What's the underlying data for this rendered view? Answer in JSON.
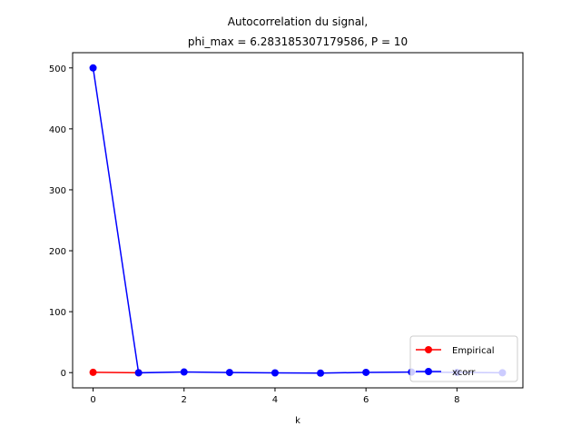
{
  "chart_data": {
    "type": "line",
    "title_lines": [
      "Autocorrelation du signal,",
      "phi_max = 6.283185307179586, P = 10"
    ],
    "xlabel": "k",
    "ylabel": "",
    "xlim": [
      -0.45,
      9.45
    ],
    "ylim": [
      -25,
      525
    ],
    "xticks": [
      0,
      2,
      4,
      6,
      8
    ],
    "yticks": [
      0,
      100,
      200,
      300,
      400,
      500
    ],
    "grid": false,
    "legend_position": "lower-right",
    "series": [
      {
        "name": "Empirical",
        "color": "#ff0000",
        "x": [
          0,
          1
        ],
        "y": [
          0.5,
          -0.3
        ]
      },
      {
        "name": "xcorr",
        "color": "#0000ff",
        "x": [
          0,
          1,
          2,
          3,
          4,
          5,
          6,
          7,
          8,
          9
        ],
        "y": [
          500,
          -0.3,
          1.0,
          0.2,
          -0.4,
          -0.8,
          0.4,
          0.9,
          0.3,
          -0.2
        ]
      }
    ]
  }
}
